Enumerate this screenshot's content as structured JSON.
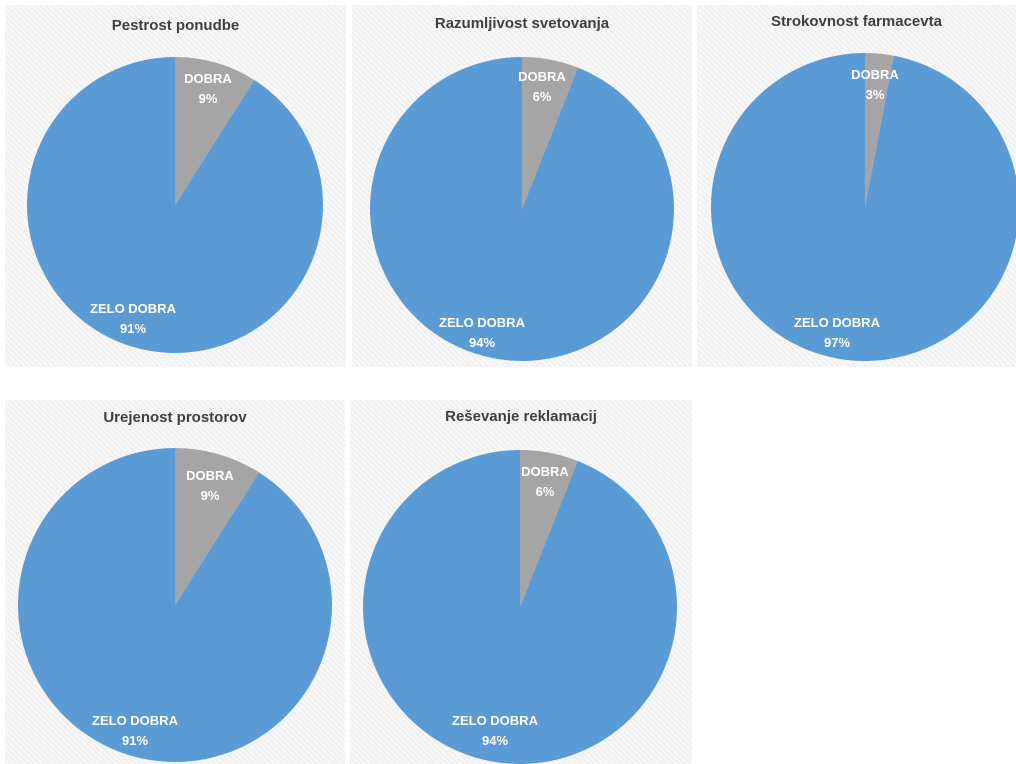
{
  "colors": {
    "zelo_dobra": "#5b9bd5",
    "dobra": "#a5a5a5",
    "label": "#ffffff",
    "title": "#404040"
  },
  "chart_data": [
    {
      "type": "pie",
      "title": "Pestrost ponudbe",
      "slices": [
        {
          "label": "DOBRA",
          "value": 9,
          "display": "9%"
        },
        {
          "label": "ZELO DOBRA",
          "value": 91,
          "display": "91%"
        }
      ]
    },
    {
      "type": "pie",
      "title": "Razumljivost svetovanja",
      "slices": [
        {
          "label": "DOBRA",
          "value": 6,
          "display": "6%"
        },
        {
          "label": "ZELO DOBRA",
          "value": 94,
          "display": "94%"
        }
      ]
    },
    {
      "type": "pie",
      "title": "Strokovnost farmacevta",
      "slices": [
        {
          "label": "DOBRA",
          "value": 3,
          "display": "3%"
        },
        {
          "label": "ZELO DOBRA",
          "value": 97,
          "display": "97%"
        }
      ]
    },
    {
      "type": "pie",
      "title": "Urejenost prostorov",
      "slices": [
        {
          "label": "DOBRA",
          "value": 9,
          "display": "9%"
        },
        {
          "label": "ZELO DOBRA",
          "value": 91,
          "display": "91%"
        }
      ]
    },
    {
      "type": "pie",
      "title": "Reševanje reklamacij",
      "slices": [
        {
          "label": "DOBRA",
          "value": 6,
          "display": "6%"
        },
        {
          "label": "ZELO DOBRA",
          "value": 94,
          "display": "94%"
        }
      ]
    }
  ]
}
